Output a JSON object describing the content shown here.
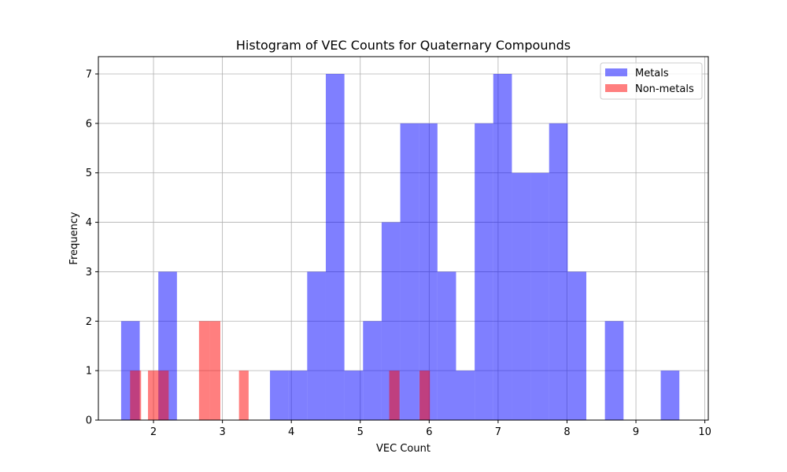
{
  "chart_data": {
    "type": "bar",
    "title": "Histogram of VEC Counts for Quaternary Compounds",
    "xlabel": "VEC Count",
    "ylabel": "Frequency",
    "xlim": [
      1.2,
      10.05
    ],
    "ylim": [
      0,
      7.35
    ],
    "xticks": [
      2,
      3,
      4,
      5,
      6,
      7,
      8,
      9,
      10
    ],
    "yticks": [
      0,
      1,
      2,
      3,
      4,
      5,
      6,
      7
    ],
    "grid": true,
    "legend_position": "top-right",
    "series": [
      {
        "name": "Metals",
        "color": "#0000ff",
        "alpha": 0.5,
        "bins": [
          {
            "x0": 1.53,
            "x1": 1.8,
            "count": 2
          },
          {
            "x0": 2.07,
            "x1": 2.34,
            "count": 3
          },
          {
            "x0": 3.69,
            "x1": 3.96,
            "count": 1
          },
          {
            "x0": 3.96,
            "x1": 4.23,
            "count": 1
          },
          {
            "x0": 4.23,
            "x1": 4.5,
            "count": 3
          },
          {
            "x0": 4.5,
            "x1": 4.77,
            "count": 7
          },
          {
            "x0": 4.77,
            "x1": 5.04,
            "count": 1
          },
          {
            "x0": 5.04,
            "x1": 5.31,
            "count": 2
          },
          {
            "x0": 5.31,
            "x1": 5.58,
            "count": 4
          },
          {
            "x0": 5.58,
            "x1": 5.85,
            "count": 6
          },
          {
            "x0": 5.85,
            "x1": 6.12,
            "count": 6
          },
          {
            "x0": 6.12,
            "x1": 6.39,
            "count": 3
          },
          {
            "x0": 6.39,
            "x1": 6.66,
            "count": 1
          },
          {
            "x0": 6.66,
            "x1": 6.93,
            "count": 6
          },
          {
            "x0": 6.93,
            "x1": 7.2,
            "count": 7
          },
          {
            "x0": 7.2,
            "x1": 7.47,
            "count": 5
          },
          {
            "x0": 7.47,
            "x1": 7.74,
            "count": 5
          },
          {
            "x0": 7.74,
            "x1": 8.01,
            "count": 6
          },
          {
            "x0": 8.01,
            "x1": 8.28,
            "count": 3
          },
          {
            "x0": 8.55,
            "x1": 8.82,
            "count": 2
          },
          {
            "x0": 9.36,
            "x1": 9.63,
            "count": 1
          }
        ]
      },
      {
        "name": "Non-metals",
        "color": "#ff0000",
        "alpha": 0.5,
        "bins": [
          {
            "x0": 1.66,
            "x1": 1.82,
            "count": 1
          },
          {
            "x0": 1.92,
            "x1": 2.08,
            "count": 1
          },
          {
            "x0": 2.08,
            "x1": 2.22,
            "count": 1
          },
          {
            "x0": 2.66,
            "x1": 2.82,
            "count": 2
          },
          {
            "x0": 2.82,
            "x1": 2.97,
            "count": 2
          },
          {
            "x0": 3.24,
            "x1": 3.38,
            "count": 1
          },
          {
            "x0": 5.42,
            "x1": 5.57,
            "count": 1
          },
          {
            "x0": 5.86,
            "x1": 6.01,
            "count": 1
          }
        ]
      }
    ]
  }
}
